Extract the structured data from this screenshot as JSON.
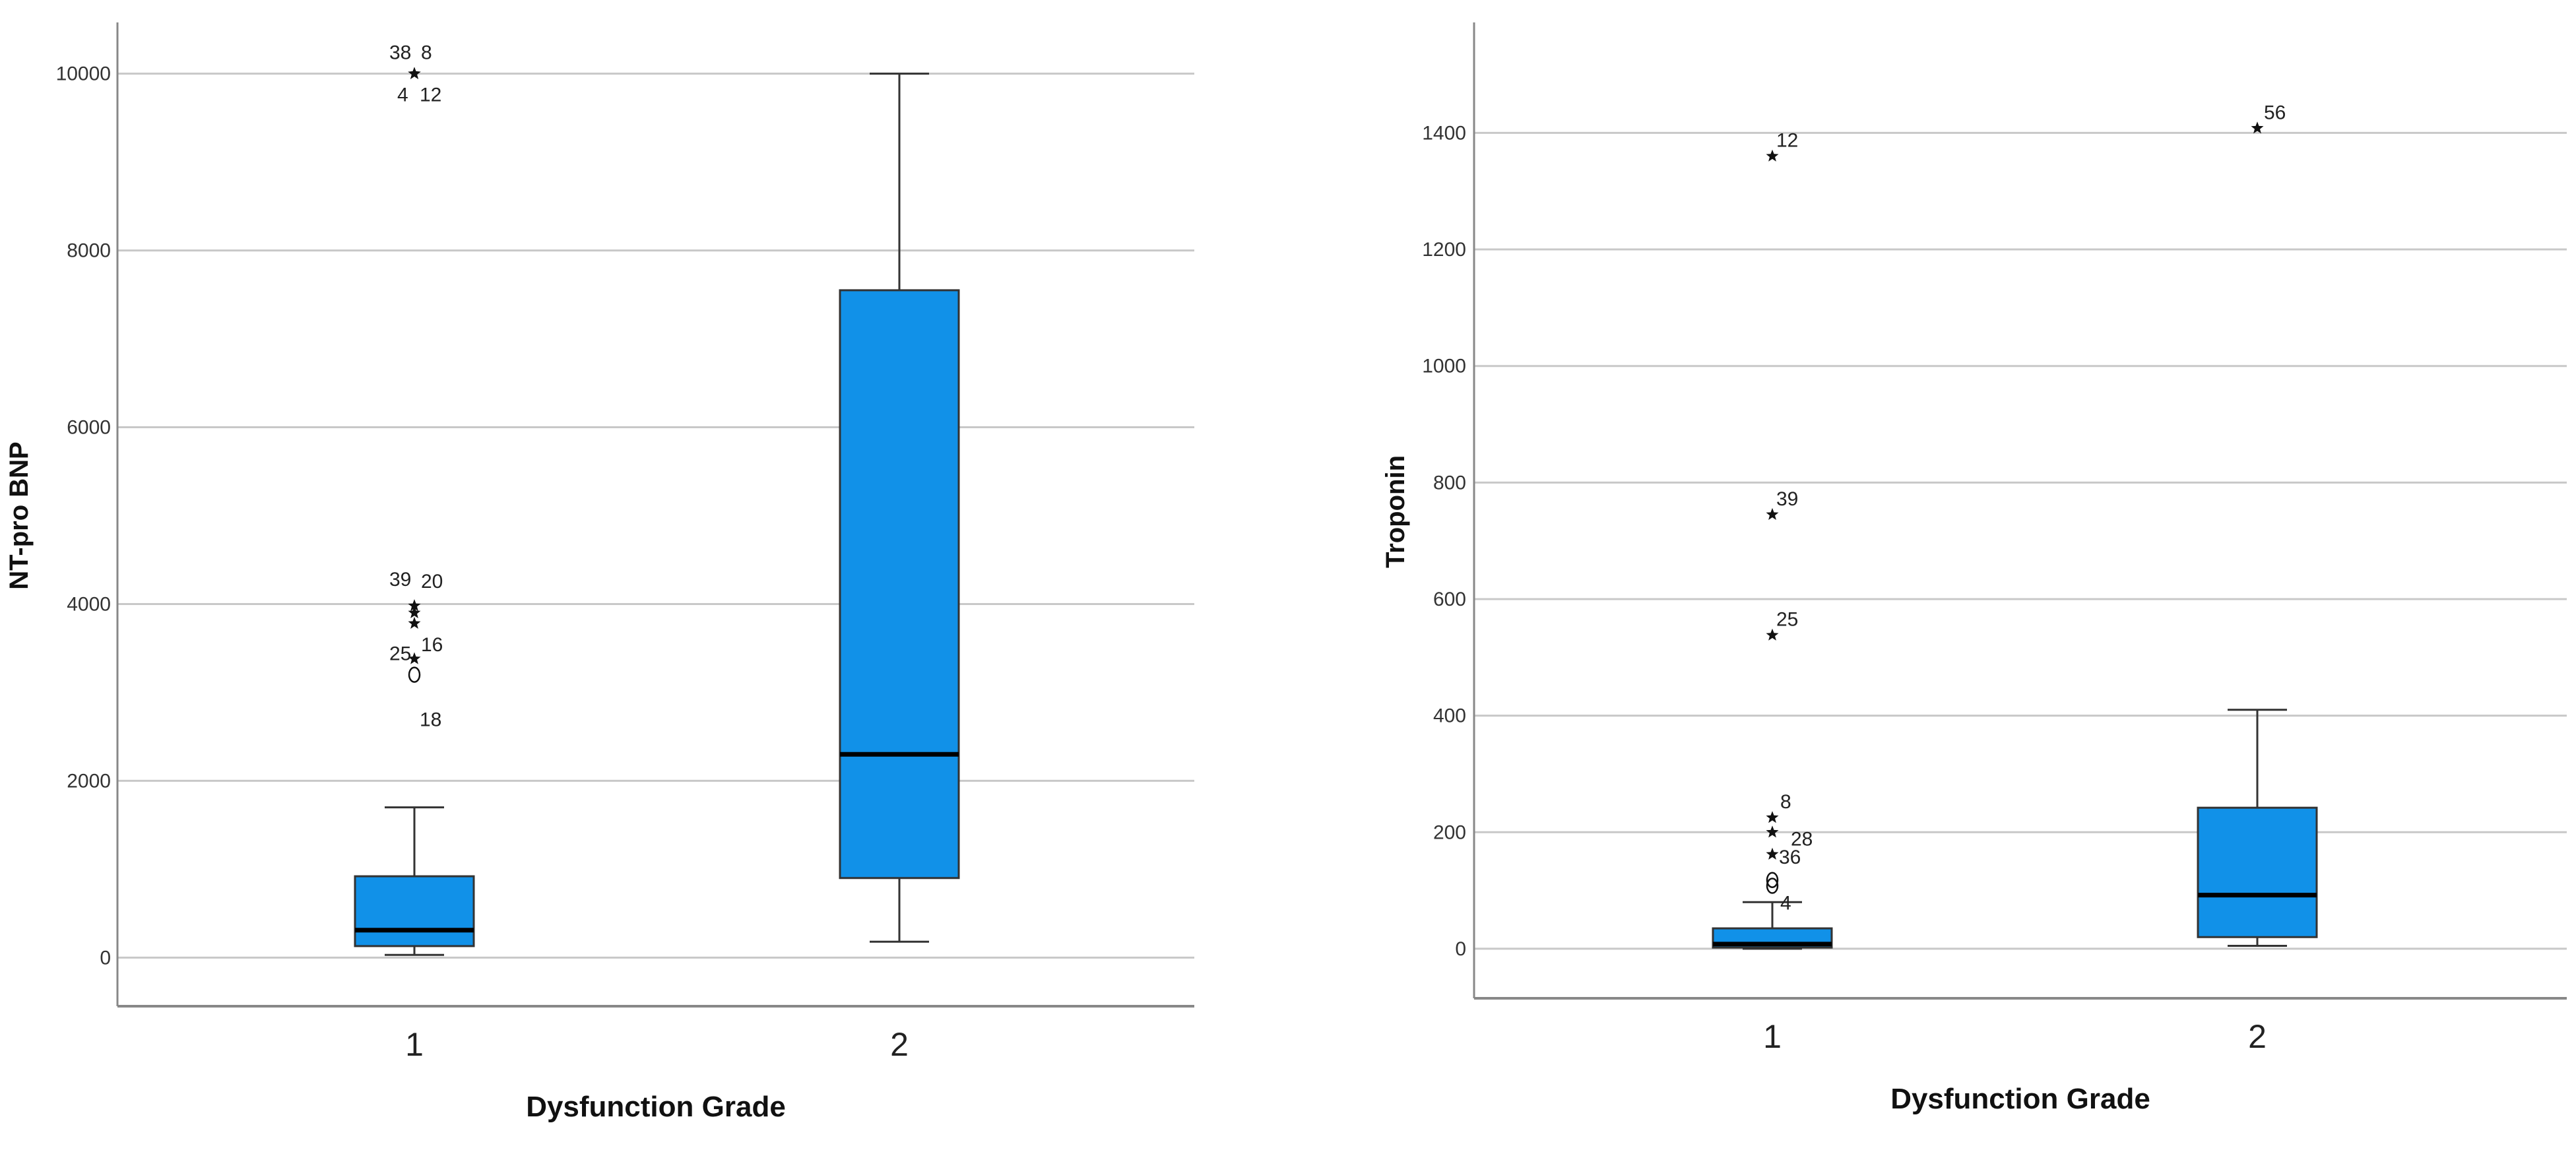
{
  "colors": {
    "box_fill": "#1191e8",
    "box_stroke": "#333333",
    "median": "#000000",
    "grid": "#c8c8c8",
    "axis": "#888888"
  },
  "chart_data": [
    {
      "type": "boxplot",
      "xlabel": "Dysfunction Grade",
      "ylabel": "NT-pro BNP",
      "categories": [
        "1",
        "2"
      ],
      "ylim": [
        -550,
        10550
      ],
      "yticks": [
        0,
        2000,
        4000,
        6000,
        8000,
        10000
      ],
      "grid": true,
      "boxes": [
        {
          "category": "1",
          "whisker_low": 30,
          "q1": 130,
          "median": 310,
          "q3": 920,
          "whisker_high": 1700
        },
        {
          "category": "2",
          "whisker_low": 180,
          "q1": 900,
          "median": 2300,
          "q3": 7550,
          "whisker_high": 10000
        }
      ],
      "outliers": [
        {
          "category": "1",
          "value": 10000,
          "marker": "star",
          "label": "38"
        },
        {
          "category": "1",
          "value": 10000,
          "marker": "star",
          "label": "8"
        },
        {
          "category": "1",
          "value": 10000,
          "marker": "star",
          "label": "4"
        },
        {
          "category": "1",
          "value": 10000,
          "marker": "star",
          "label": "12"
        },
        {
          "category": "1",
          "value": 3980,
          "marker": "star",
          "label": "39"
        },
        {
          "category": "1",
          "value": 3900,
          "marker": "star",
          "label": "20"
        },
        {
          "category": "1",
          "value": 3780,
          "marker": "star",
          "label": "16"
        },
        {
          "category": "1",
          "value": 3380,
          "marker": "star",
          "label": "25"
        },
        {
          "category": "1",
          "value": 3200,
          "marker": "circle",
          "label": "18"
        }
      ]
    },
    {
      "type": "boxplot",
      "xlabel": "Dysfunction Grade",
      "ylabel": "Troponin",
      "categories": [
        "1",
        "2"
      ],
      "ylim": [
        -85,
        1585
      ],
      "yticks": [
        0,
        200,
        400,
        600,
        800,
        1000,
        1200,
        1400
      ],
      "grid": true,
      "boxes": [
        {
          "category": "1",
          "whisker_low": 0,
          "q1": 2,
          "median": 8,
          "q3": 35,
          "whisker_high": 80
        },
        {
          "category": "2",
          "whisker_low": 5,
          "q1": 20,
          "median": 92,
          "q3": 242,
          "whisker_high": 410
        }
      ],
      "outliers": [
        {
          "category": "1",
          "value": 1360,
          "marker": "star",
          "label": "12"
        },
        {
          "category": "1",
          "value": 745,
          "marker": "star",
          "label": "39"
        },
        {
          "category": "1",
          "value": 538,
          "marker": "star",
          "label": "25"
        },
        {
          "category": "1",
          "value": 225,
          "marker": "star",
          "label": "8"
        },
        {
          "category": "1",
          "value": 200,
          "marker": "star",
          "label": "28"
        },
        {
          "category": "1",
          "value": 162,
          "marker": "star",
          "label": "36"
        },
        {
          "category": "1",
          "value": 118,
          "marker": "circle",
          "label": ""
        },
        {
          "category": "1",
          "value": 108,
          "marker": "circle",
          "label": "4"
        },
        {
          "category": "2",
          "value": 1408,
          "marker": "star",
          "label": "56"
        }
      ]
    }
  ]
}
